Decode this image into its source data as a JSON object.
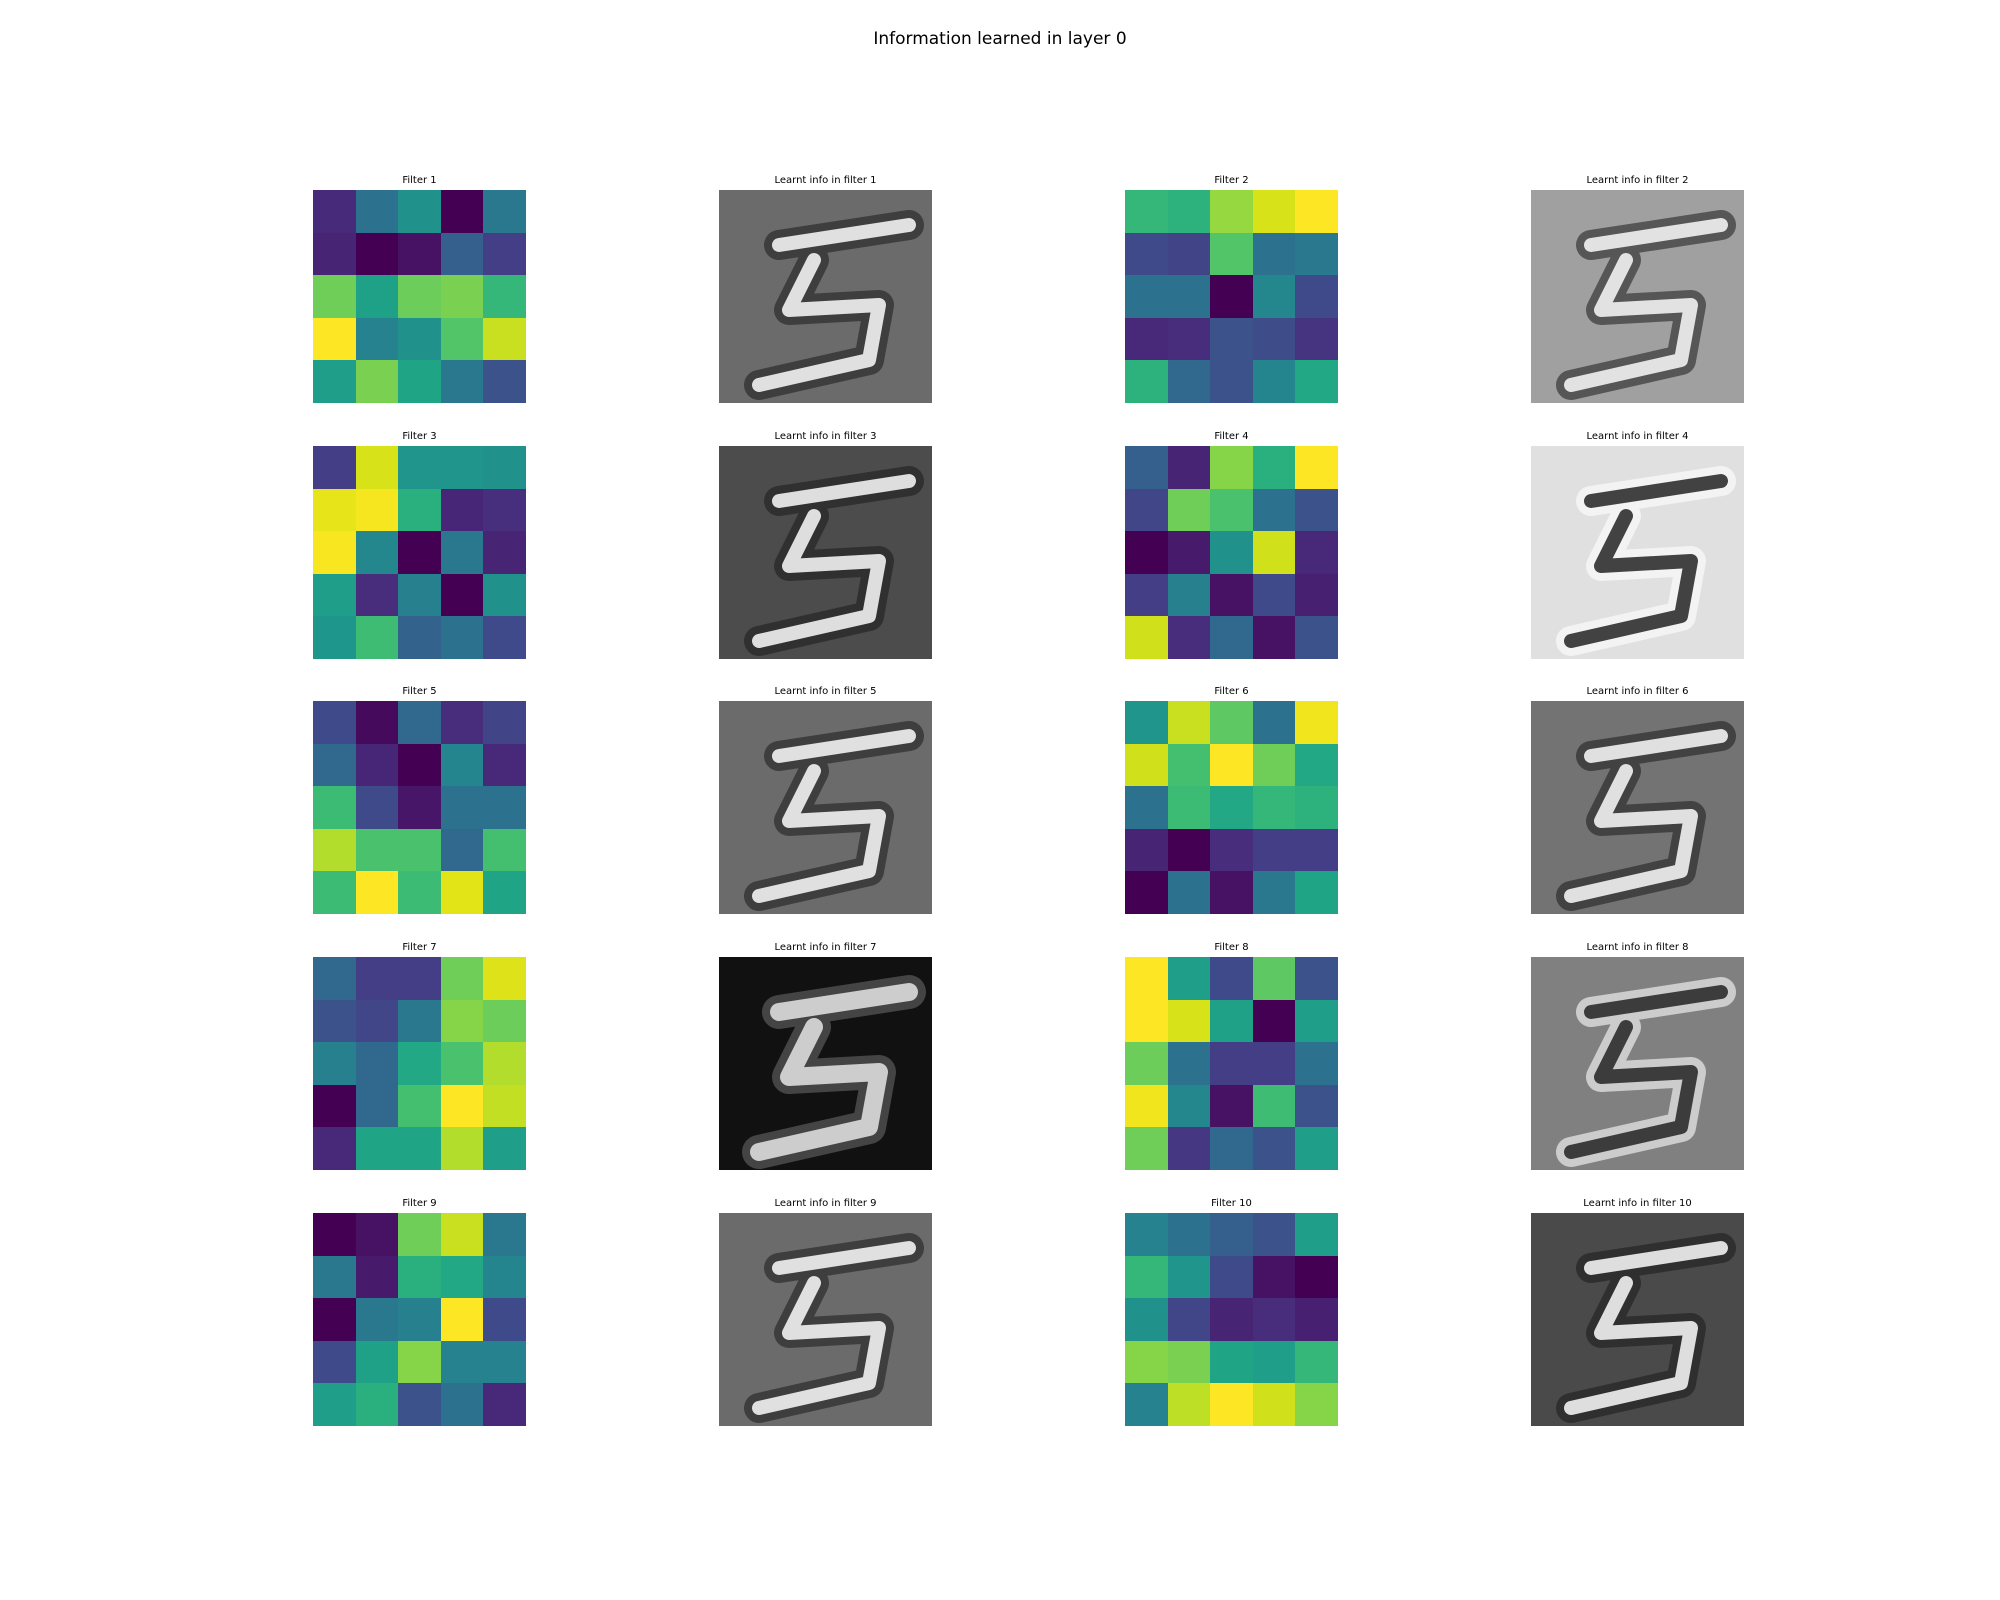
{
  "figure": {
    "title": "Information learned in layer 0"
  },
  "panels": [
    {
      "filter_title": "Filter 1",
      "learnt_title": "Learnt info in filter 1",
      "learnt_background": "#6b6b6b",
      "learnt_mode": "edge",
      "kernel": [
        [
          "#472a7a",
          "#2c728e",
          "#21918c",
          "#440154",
          "#2a788e"
        ],
        [
          "#482475",
          "#440154",
          "#471164",
          "#355f8d",
          "#433e85"
        ],
        [
          "#6ece58",
          "#1fa187",
          "#6ccd5a",
          "#7ad151",
          "#35b779"
        ],
        [
          "#fde725",
          "#26828e",
          "#21918c",
          "#52c569",
          "#c8e020"
        ],
        [
          "#1f9e89",
          "#7ad151",
          "#20a486",
          "#2a788e",
          "#3b528b"
        ]
      ]
    },
    {
      "filter_title": "Filter 2",
      "learnt_title": "Learnt info in filter 2",
      "learnt_background": "#a0a0a0",
      "learnt_mode": "edge",
      "kernel": [
        [
          "#35b779",
          "#2db27d",
          "#95d840",
          "#d8e219",
          "#fde725"
        ],
        [
          "#3e4a89",
          "#414487",
          "#52c569",
          "#2c728e",
          "#2a788e"
        ],
        [
          "#2c728e",
          "#2c728e",
          "#440154",
          "#24878e",
          "#3e4a89"
        ],
        [
          "#482878",
          "#472d7b",
          "#3b528b",
          "#3e4c8a",
          "#463480"
        ],
        [
          "#2db27d",
          "#31688e",
          "#3b528b",
          "#25858e",
          "#22a884"
        ]
      ]
    },
    {
      "filter_title": "Filter 3",
      "learnt_title": "Learnt info in filter 3",
      "learnt_background": "#4c4c4c",
      "learnt_mode": "edge",
      "kernel": [
        [
          "#433e85",
          "#d8e219",
          "#1f958b",
          "#1f958b",
          "#21918c"
        ],
        [
          "#e7e419",
          "#f6e620",
          "#2ab07f",
          "#482677",
          "#472f7d"
        ],
        [
          "#f8e621",
          "#24878e",
          "#440154",
          "#2a788e",
          "#482475"
        ],
        [
          "#1f9e89",
          "#472d7b",
          "#27808e",
          "#440154",
          "#21918c"
        ],
        [
          "#1f968b",
          "#3fbc73",
          "#33638d",
          "#2c728e",
          "#3e4a89"
        ]
      ]
    },
    {
      "filter_title": "Filter 4",
      "learnt_title": "Learnt info in filter 4",
      "learnt_background": "#e0e0e0",
      "learnt_mode": "dark",
      "kernel": [
        [
          "#355f8d",
          "#482475",
          "#86d549",
          "#2ab07f",
          "#fde725"
        ],
        [
          "#404688",
          "#6ece58",
          "#4ac16d",
          "#2c728e",
          "#3b528b"
        ],
        [
          "#440154",
          "#481a6c",
          "#21918c",
          "#d0e11c",
          "#482878"
        ],
        [
          "#433e85",
          "#27808e",
          "#471164",
          "#3e4a89",
          "#482071"
        ],
        [
          "#d0e11c",
          "#472d7b",
          "#31688e",
          "#471164",
          "#3b528b"
        ]
      ]
    },
    {
      "filter_title": "Filter 5",
      "learnt_title": "Learnt info in filter 5",
      "learnt_background": "#6b6b6b",
      "learnt_mode": "edge",
      "kernel": [
        [
          "#3e4a89",
          "#450a5c",
          "#31688e",
          "#472d7b",
          "#414487"
        ],
        [
          "#31688e",
          "#482677",
          "#440154",
          "#25858e",
          "#482878"
        ],
        [
          "#3cbb75",
          "#3e4a89",
          "#481668",
          "#2c728e",
          "#2c728e"
        ],
        [
          "#b2dd2d",
          "#4ac16d",
          "#4ac16d",
          "#31688e",
          "#44bf70"
        ],
        [
          "#3cbb75",
          "#fde725",
          "#3cbb75",
          "#e2e418",
          "#20a486"
        ]
      ]
    },
    {
      "filter_title": "Filter 6",
      "learnt_title": "Learnt info in filter 6",
      "learnt_background": "#737373",
      "learnt_mode": "edge",
      "kernel": [
        [
          "#1f958b",
          "#c8e020",
          "#5ec962",
          "#2c728e",
          "#f1e51d"
        ],
        [
          "#d0e11c",
          "#44bf70",
          "#fde725",
          "#6ece58",
          "#22a884"
        ],
        [
          "#2c728e",
          "#3cbb75",
          "#22a884",
          "#35b779",
          "#2db27d"
        ],
        [
          "#482475",
          "#440154",
          "#472d7b",
          "#433e85",
          "#433e85"
        ],
        [
          "#440154",
          "#2c728e",
          "#471164",
          "#2a788e",
          "#20a486"
        ]
      ]
    },
    {
      "filter_title": "Filter 7",
      "learnt_title": "Learnt info in filter 7",
      "learnt_background": "#111111",
      "learnt_mode": "bright",
      "kernel": [
        [
          "#31688e",
          "#433e85",
          "#433e85",
          "#6ece58",
          "#dde318"
        ],
        [
          "#3b528b",
          "#404688",
          "#2a788e",
          "#86d549",
          "#6ccd5a"
        ],
        [
          "#27808e",
          "#31688e",
          "#22a884",
          "#4ac16d",
          "#b2dd2d"
        ],
        [
          "#440154",
          "#31688e",
          "#44bf70",
          "#fde725",
          "#c2df23"
        ],
        [
          "#482878",
          "#20a486",
          "#20a486",
          "#b2dd2d",
          "#1f9e89"
        ]
      ]
    },
    {
      "filter_title": "Filter 8",
      "learnt_title": "Learnt info in filter 8",
      "learnt_background": "#808080",
      "learnt_mode": "dark",
      "kernel": [
        [
          "#fde725",
          "#1f9e89",
          "#3e4a89",
          "#5ec962",
          "#3b528b"
        ],
        [
          "#fde725",
          "#d8e219",
          "#1fa187",
          "#440154",
          "#1f9e89"
        ],
        [
          "#6ccd5a",
          "#2c728e",
          "#433e85",
          "#433e85",
          "#2c728e"
        ],
        [
          "#f1e51d",
          "#24878e",
          "#471164",
          "#3fbc73",
          "#3b528b"
        ],
        [
          "#6ece58",
          "#453781",
          "#31688e",
          "#3b528b",
          "#1f9e89"
        ]
      ]
    },
    {
      "filter_title": "Filter 9",
      "learnt_title": "Learnt info in filter 9",
      "learnt_background": "#6b6b6b",
      "learnt_mode": "edge",
      "kernel": [
        [
          "#440154",
          "#471164",
          "#6ece58",
          "#c8e020",
          "#2a788e"
        ],
        [
          "#2a788e",
          "#481a6c",
          "#2ab07f",
          "#22a884",
          "#25858e"
        ],
        [
          "#440154",
          "#2a788e",
          "#27808e",
          "#fde725",
          "#3e4a89"
        ],
        [
          "#3e4a89",
          "#1fa187",
          "#86d549",
          "#26828e",
          "#26828e"
        ],
        [
          "#1f9e89",
          "#2ab07f",
          "#3b528b",
          "#2c728e",
          "#482878"
        ]
      ]
    },
    {
      "filter_title": "Filter 10",
      "learnt_title": "Learnt info in filter 10",
      "learnt_background": "#4a4a4a",
      "learnt_mode": "edge",
      "kernel": [
        [
          "#26828e",
          "#2c728e",
          "#355f8d",
          "#3b528b",
          "#1f9e89"
        ],
        [
          "#35b779",
          "#1f958b",
          "#3e4a89",
          "#471164",
          "#440154"
        ],
        [
          "#21918c",
          "#404688",
          "#482475",
          "#472d7b",
          "#482071"
        ],
        [
          "#86d549",
          "#7ad151",
          "#20a486",
          "#1f9e89",
          "#35b779"
        ],
        [
          "#26828e",
          "#bddf26",
          "#fde725",
          "#d0e11c",
          "#86d549"
        ]
      ]
    }
  ]
}
